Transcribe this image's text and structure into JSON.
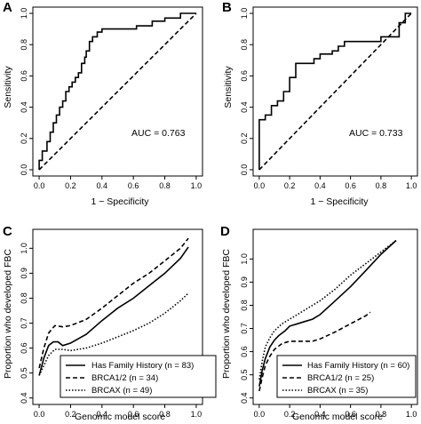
{
  "chart_data": [
    {
      "panel_label": "A",
      "type": "line",
      "xlabel": "1 − Specificity",
      "ylabel": "Sensitivity",
      "xlim": [
        0,
        1
      ],
      "ylim": [
        0,
        1
      ],
      "xticks": [
        "0.0",
        "0.2",
        "0.4",
        "0.6",
        "0.8",
        "1.0"
      ],
      "yticks": [
        "0.0",
        "0.2",
        "0.4",
        "0.6",
        "0.8",
        "1.0"
      ],
      "annotation": "AUC = 0.763",
      "series": [
        {
          "style": "step",
          "x": [
            0,
            0,
            0.02,
            0.02,
            0.05,
            0.05,
            0.07,
            0.07,
            0.09,
            0.09,
            0.11,
            0.11,
            0.13,
            0.13,
            0.15,
            0.15,
            0.17,
            0.17,
            0.19,
            0.19,
            0.21,
            0.21,
            0.23,
            0.23,
            0.25,
            0.25,
            0.27,
            0.27,
            0.29,
            0.29,
            0.3,
            0.3,
            0.32,
            0.32,
            0.34,
            0.34,
            0.37,
            0.37,
            0.4,
            0.4,
            0.47,
            0.47,
            0.57,
            0.57,
            0.62,
            0.62,
            0.72,
            0.72,
            0.8,
            0.8,
            0.9,
            0.9,
            1.0
          ],
          "y": [
            0,
            0.06,
            0.06,
            0.12,
            0.12,
            0.18,
            0.18,
            0.24,
            0.24,
            0.3,
            0.3,
            0.35,
            0.35,
            0.4,
            0.4,
            0.44,
            0.44,
            0.5,
            0.5,
            0.53,
            0.53,
            0.56,
            0.56,
            0.59,
            0.59,
            0.62,
            0.62,
            0.68,
            0.68,
            0.72,
            0.72,
            0.76,
            0.76,
            0.82,
            0.82,
            0.85,
            0.85,
            0.88,
            0.88,
            0.9,
            0.9,
            0.9,
            0.9,
            0.9,
            0.9,
            0.92,
            0.92,
            0.95,
            0.95,
            0.97,
            0.97,
            1.0,
            1.0
          ]
        },
        {
          "style": "dashed",
          "x": [
            0,
            1
          ],
          "y": [
            0,
            1
          ]
        }
      ]
    },
    {
      "panel_label": "B",
      "type": "line",
      "xlabel": "1 − Specificity",
      "ylabel": "Sensitivity",
      "xlim": [
        0,
        1
      ],
      "ylim": [
        0,
        1
      ],
      "xticks": [
        "0.0",
        "0.2",
        "0.4",
        "0.6",
        "0.8",
        "1.0"
      ],
      "yticks": [
        "0.0",
        "0.2",
        "0.4",
        "0.6",
        "0.8",
        "1.0"
      ],
      "annotation": "AUC = 0.733",
      "series": [
        {
          "style": "step",
          "x": [
            0,
            0,
            0.04,
            0.04,
            0.08,
            0.08,
            0.12,
            0.12,
            0.16,
            0.16,
            0.2,
            0.2,
            0.24,
            0.24,
            0.28,
            0.28,
            0.32,
            0.32,
            0.36,
            0.36,
            0.4,
            0.4,
            0.48,
            0.48,
            0.52,
            0.52,
            0.56,
            0.56,
            0.6,
            0.6,
            0.8,
            0.8,
            0.92,
            0.92,
            0.96,
            0.96,
            1.0,
            1.0
          ],
          "y": [
            0,
            0.32,
            0.32,
            0.35,
            0.35,
            0.41,
            0.41,
            0.44,
            0.44,
            0.5,
            0.5,
            0.59,
            0.59,
            0.68,
            0.68,
            0.68,
            0.68,
            0.68,
            0.68,
            0.71,
            0.71,
            0.74,
            0.74,
            0.76,
            0.76,
            0.79,
            0.79,
            0.82,
            0.82,
            0.82,
            0.82,
            0.85,
            0.85,
            0.94,
            0.94,
            1.0,
            1.0,
            1.0
          ]
        },
        {
          "style": "dashed",
          "x": [
            0,
            1
          ],
          "y": [
            0,
            1
          ]
        }
      ]
    },
    {
      "panel_label": "C",
      "type": "line",
      "xlabel": "Genomic model score",
      "ylabel": "Proportion who developed FBC",
      "xlim": [
        0,
        1
      ],
      "ylim": [
        0.4,
        1.05
      ],
      "xticks": [
        "0.0",
        "0.2",
        "0.4",
        "0.6",
        "0.8",
        "1.0"
      ],
      "yticks": [
        "0.4",
        "0.5",
        "0.6",
        "0.7",
        "0.8",
        "0.9",
        "1.0"
      ],
      "legend_position": "bottom-right",
      "series": [
        {
          "name": "Has Family History (n = 83)",
          "style": "solid",
          "x": [
            0,
            0.03,
            0.06,
            0.09,
            0.12,
            0.15,
            0.2,
            0.3,
            0.4,
            0.5,
            0.6,
            0.7,
            0.8,
            0.9,
            0.95
          ],
          "y": [
            0.49,
            0.56,
            0.61,
            0.625,
            0.625,
            0.61,
            0.62,
            0.655,
            0.71,
            0.76,
            0.8,
            0.85,
            0.9,
            0.96,
            1.005
          ]
        },
        {
          "name": "BRCA1/2 (n = 34)",
          "style": "dashed",
          "x": [
            0,
            0.03,
            0.06,
            0.1,
            0.15,
            0.2,
            0.3,
            0.4,
            0.5,
            0.6,
            0.7,
            0.8,
            0.9,
            0.95
          ],
          "y": [
            0.52,
            0.6,
            0.66,
            0.69,
            0.685,
            0.69,
            0.715,
            0.76,
            0.81,
            0.86,
            0.9,
            0.95,
            1.0,
            1.04
          ]
        },
        {
          "name": "BRCAX (n = 49)",
          "style": "dotted",
          "x": [
            0,
            0.03,
            0.06,
            0.1,
            0.15,
            0.2,
            0.3,
            0.4,
            0.5,
            0.6,
            0.7,
            0.8,
            0.9,
            0.95
          ],
          "y": [
            0.49,
            0.53,
            0.57,
            0.595,
            0.595,
            0.59,
            0.6,
            0.62,
            0.645,
            0.67,
            0.7,
            0.74,
            0.79,
            0.82
          ]
        }
      ]
    },
    {
      "panel_label": "D",
      "type": "line",
      "xlabel": "Genomic model score",
      "ylabel": "Proportion who developed FBC",
      "xlim": [
        0,
        1
      ],
      "ylim": [
        0.4,
        1.1
      ],
      "xticks": [
        "0.0",
        "0.2",
        "0.4",
        "0.6",
        "0.8",
        "1.0"
      ],
      "yticks": [
        "0.4",
        "0.5",
        "0.6",
        "0.7",
        "0.8",
        "0.9",
        "1.0"
      ],
      "legend_position": "bottom-right",
      "series": [
        {
          "name": "Has Family History (n = 60)",
          "style": "solid",
          "x": [
            0,
            0.02,
            0.04,
            0.07,
            0.1,
            0.13,
            0.17,
            0.2,
            0.25,
            0.3,
            0.35,
            0.4,
            0.5,
            0.6,
            0.7,
            0.8,
            0.9
          ],
          "y": [
            0.45,
            0.52,
            0.57,
            0.62,
            0.65,
            0.67,
            0.69,
            0.71,
            0.72,
            0.73,
            0.74,
            0.76,
            0.82,
            0.88,
            0.95,
            1.02,
            1.08
          ]
        },
        {
          "name": "BRCA1/2 (n = 25)",
          "style": "dashed",
          "x": [
            0,
            0.02,
            0.04,
            0.07,
            0.1,
            0.15,
            0.2,
            0.25,
            0.3,
            0.35,
            0.4,
            0.5,
            0.6,
            0.7,
            0.73
          ],
          "y": [
            0.43,
            0.49,
            0.54,
            0.58,
            0.61,
            0.635,
            0.645,
            0.645,
            0.645,
            0.645,
            0.655,
            0.685,
            0.72,
            0.755,
            0.77
          ]
        },
        {
          "name": "BRCAX (n = 35)",
          "style": "dotted",
          "x": [
            0,
            0.02,
            0.04,
            0.07,
            0.1,
            0.15,
            0.2,
            0.25,
            0.3,
            0.4,
            0.5,
            0.6,
            0.7,
            0.8,
            0.9
          ],
          "y": [
            0.48,
            0.56,
            0.62,
            0.66,
            0.69,
            0.72,
            0.74,
            0.76,
            0.78,
            0.82,
            0.87,
            0.93,
            0.98,
            1.03,
            1.08
          ]
        }
      ]
    }
  ]
}
